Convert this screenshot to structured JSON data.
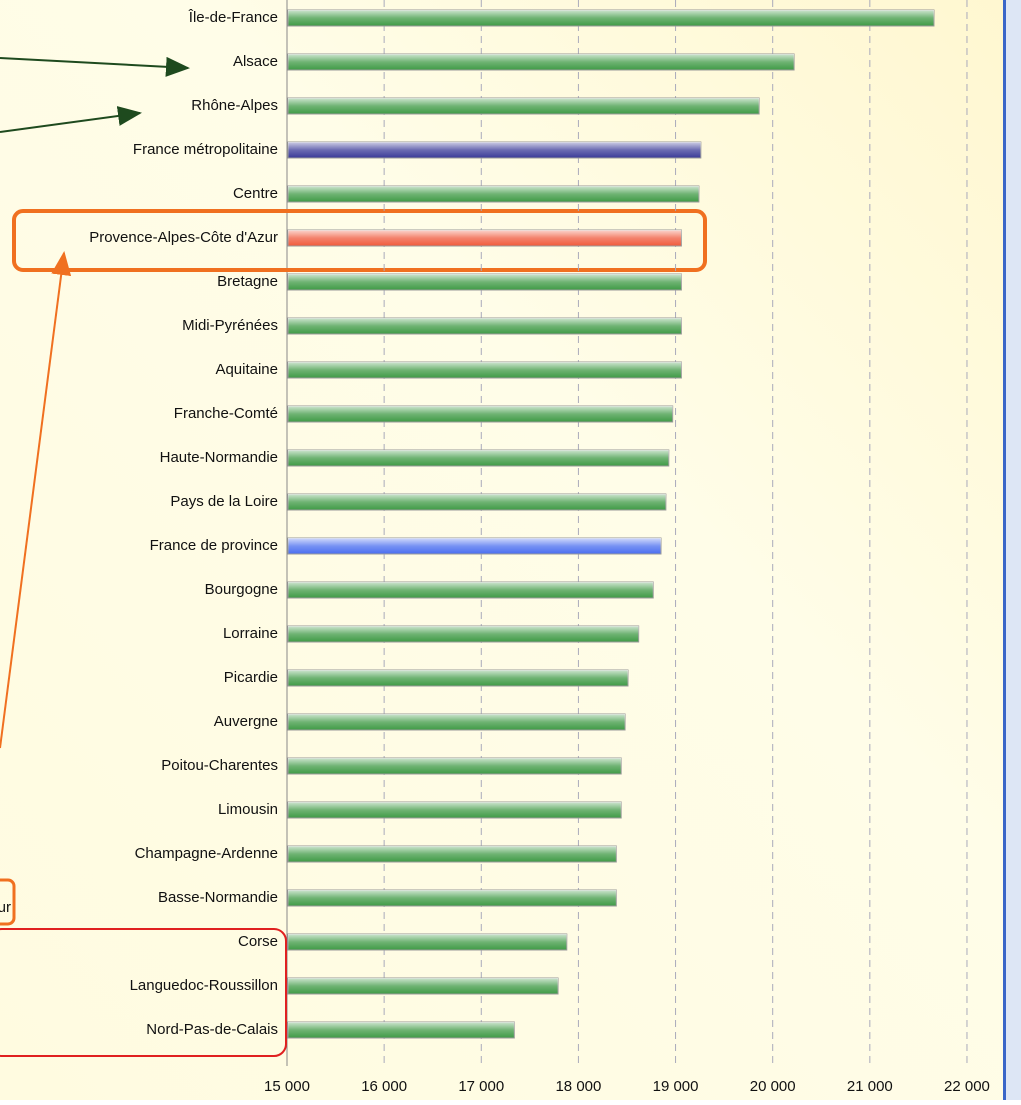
{
  "chart_data": {
    "type": "bar",
    "orientation": "horizontal",
    "categories": [
      "Île-de-France",
      "Alsace",
      "Rhône-Alpes",
      "France métropolitaine",
      "Centre",
      "Provence-Alpes-Côte d'Azur",
      "Bretagne",
      "Midi-Pyrénées",
      "Aquitaine",
      "Franche-Comté",
      "Haute-Normandie",
      "Pays de la Loire",
      "France de province",
      "Bourgogne",
      "Lorraine",
      "Picardie",
      "Auvergne",
      "Poitou-Charentes",
      "Limousin",
      "Champagne-Ardenne",
      "Basse-Normandie",
      "Corse",
      "Languedoc-Roussillon",
      "Nord-Pas-de-Calais"
    ],
    "values": [
      21650,
      20210,
      19850,
      19250,
      19230,
      19050,
      19050,
      19050,
      19050,
      18960,
      18920,
      18890,
      18840,
      18760,
      18610,
      18500,
      18470,
      18430,
      18430,
      18380,
      18380,
      17870,
      17780,
      17330
    ],
    "colors": [
      "#3f9a45",
      "#3f9a45",
      "#3f9a45",
      "#3a3a98",
      "#3f9a45",
      "#f05a3c",
      "#3f9a45",
      "#3f9a45",
      "#3f9a45",
      "#3f9a45",
      "#3f9a45",
      "#3f9a45",
      "#4a6ef0",
      "#3f9a45",
      "#3f9a45",
      "#3f9a45",
      "#3f9a45",
      "#3f9a45",
      "#3f9a45",
      "#3f9a45",
      "#3f9a45",
      "#3f9a45",
      "#3f9a45",
      "#3f9a45"
    ],
    "xlim": [
      15000,
      22340
    ],
    "xticks": [
      {
        "value": 15000,
        "label": "15 000"
      },
      {
        "value": 16000,
        "label": "16 000"
      },
      {
        "value": 17000,
        "label": "17 000"
      },
      {
        "value": 18000,
        "label": "18 000"
      },
      {
        "value": 19000,
        "label": "19 000"
      },
      {
        "value": 20000,
        "label": "20 000"
      },
      {
        "value": 21000,
        "label": "21 000"
      },
      {
        "value": 22000,
        "label": "22 000"
      }
    ],
    "grid": true,
    "annotations": [
      {
        "text": "ur"
      }
    ]
  }
}
